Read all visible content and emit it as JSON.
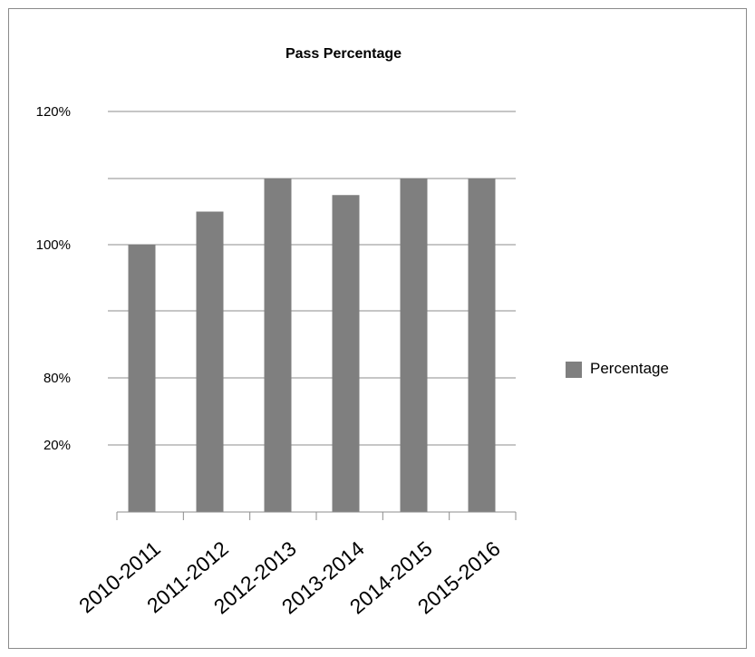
{
  "chart_data": {
    "type": "bar",
    "title": "Pass Percentage",
    "xlabel": "",
    "ylabel": "",
    "categories": [
      "2010-2011",
      "2011-2012",
      "2012-2013",
      "2013-2014",
      "2014-2015",
      "2015-2016"
    ],
    "series": [
      {
        "name": "Percentage",
        "values": [
          100,
          102.5,
          105,
          103.75,
          105,
          105
        ]
      }
    ],
    "y_ticks": [
      {
        "value": 120,
        "label": "120%"
      },
      {
        "value": 105,
        "label": ""
      },
      {
        "value": 100,
        "label": "100%"
      },
      {
        "value": 95,
        "label": ""
      },
      {
        "value": 80,
        "label": "80%"
      },
      {
        "value": 20,
        "label": "20%"
      }
    ],
    "grid": true,
    "legend_position": "right",
    "colors": {
      "bar": "#7f7f7f",
      "grid": "#8c8c8c",
      "axis": "#8c8c8c"
    }
  }
}
